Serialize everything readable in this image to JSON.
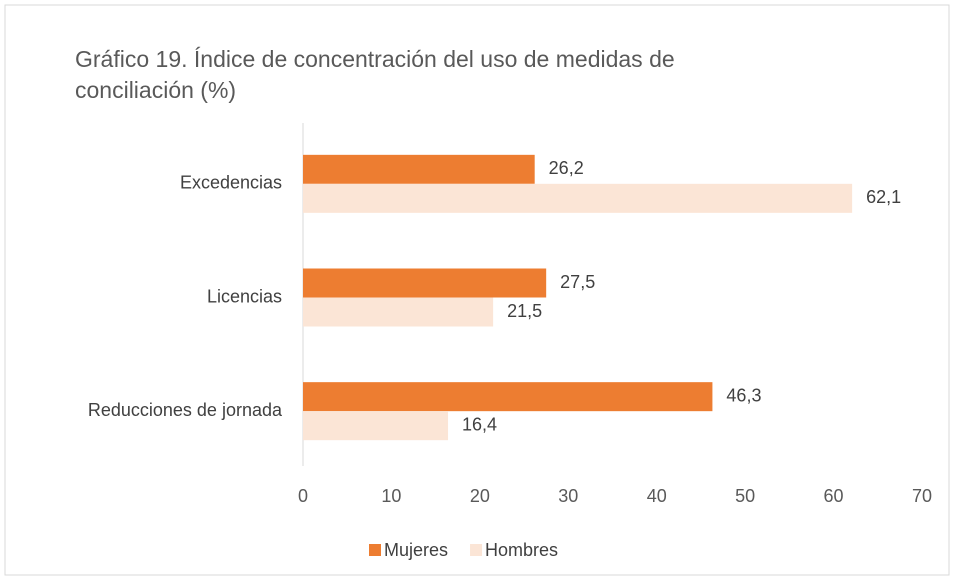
{
  "chart_data": {
    "type": "hbar",
    "title": "Gráfico 19. Índice de concentración del uso de medidas de conciliación (%)",
    "categories": [
      "Excedencias",
      "Licencias",
      "Reducciones de jornada"
    ],
    "series": [
      {
        "name": "Mujeres",
        "color": "#ed7d31",
        "values": [
          26.2,
          27.5,
          46.3
        ],
        "value_labels": [
          "26,2",
          "27,5",
          "46,3"
        ]
      },
      {
        "name": "Hombres",
        "color": "#fbe5d6",
        "values": [
          62.1,
          21.5,
          16.4
        ],
        "value_labels": [
          "62,1",
          "21,5",
          "16,4"
        ]
      }
    ],
    "xlim": [
      0,
      70
    ],
    "xticks": [
      0,
      10,
      20,
      30,
      40,
      50,
      60,
      70
    ],
    "legend": "bottom"
  }
}
